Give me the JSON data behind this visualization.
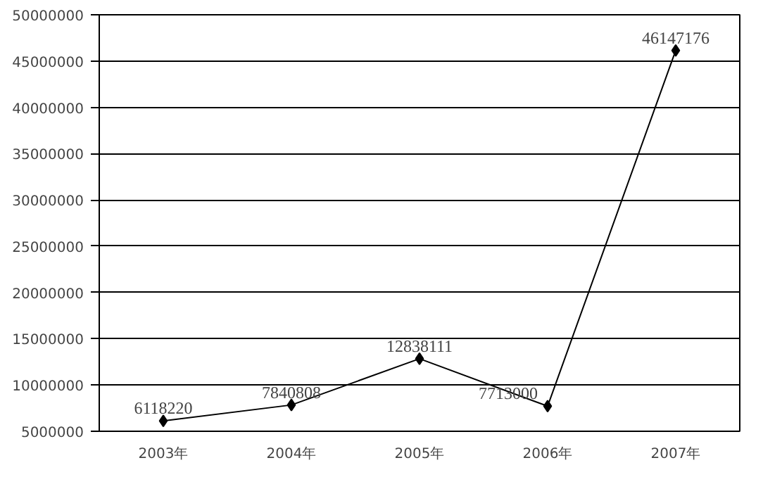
{
  "chart_data": {
    "type": "line",
    "categories": [
      "2003年",
      "2004年",
      "2005年",
      "2006年",
      "2007年"
    ],
    "series": [
      {
        "color": "#000000",
        "values": [
          6118220,
          7840808,
          12838111,
          7713000,
          46147176
        ]
      }
    ],
    "ylim": [
      5000000,
      50000000
    ],
    "yticks": [
      5000000,
      10000000,
      15000000,
      20000000,
      25000000,
      30000000,
      35000000,
      40000000,
      45000000,
      50000000
    ],
    "grid": "y",
    "marker": "diamond",
    "data_labels": true
  }
}
